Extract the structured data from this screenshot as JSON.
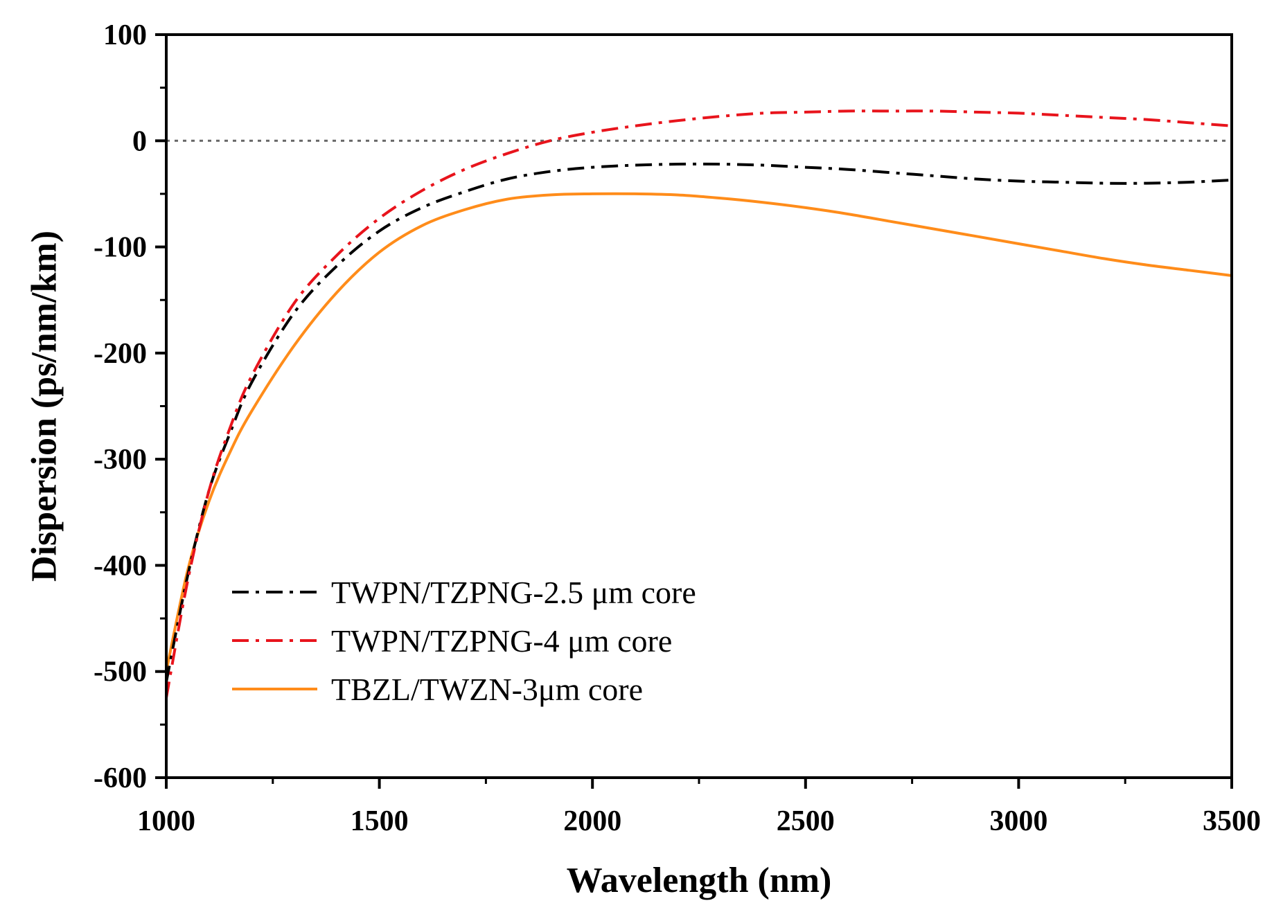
{
  "chart_data": {
    "type": "line",
    "title": "",
    "xlabel": "Wavelength (nm)",
    "ylabel": "Dispersion (ps/nm/km)",
    "xlim": [
      1000,
      3500
    ],
    "ylim": [
      -600,
      100
    ],
    "xticks": [
      1000,
      1500,
      2000,
      2500,
      3000,
      3500
    ],
    "xtick_labels": [
      "1000",
      "1500",
      "2000",
      "2500",
      "3000",
      "3500"
    ],
    "yticks": [
      100,
      0,
      -100,
      -200,
      -300,
      -400,
      -500,
      -600
    ],
    "ytick_labels": [
      "100",
      "0",
      "-100",
      "-200",
      "-300",
      "-400",
      "-500",
      "-600"
    ],
    "zero_line": {
      "y": 0,
      "style": "dotted",
      "color": "#666666"
    },
    "legend_position": "lower-left",
    "series": [
      {
        "name": "TWPN/TZPNG-2.5 μm core",
        "color": "#000000",
        "style": "dash-dot",
        "x": [
          1000,
          1050,
          1100,
          1150,
          1200,
          1300,
          1400,
          1500,
          1600,
          1700,
          1800,
          1900,
          2000,
          2100,
          2200,
          2300,
          2400,
          2500,
          2600,
          2700,
          2800,
          2900,
          3000,
          3100,
          3200,
          3300,
          3400,
          3500
        ],
        "y": [
          -510,
          -410,
          -330,
          -275,
          -228,
          -162,
          -118,
          -85,
          -63,
          -48,
          -36,
          -29,
          -25,
          -23,
          -22,
          -22,
          -23,
          -25,
          -27,
          -30,
          -33,
          -36,
          -38,
          -39,
          -40,
          -40,
          -39,
          -37
        ]
      },
      {
        "name": "TWPN/TZPNG-4 μm core",
        "color": "#e8141c",
        "style": "dash-dot",
        "x": [
          1000,
          1050,
          1100,
          1150,
          1200,
          1300,
          1400,
          1500,
          1600,
          1700,
          1800,
          1900,
          2000,
          2100,
          2200,
          2300,
          2400,
          2500,
          2600,
          2700,
          2800,
          2900,
          3000,
          3100,
          3200,
          3300,
          3400,
          3500
        ],
        "y": [
          -525,
          -415,
          -330,
          -270,
          -222,
          -153,
          -108,
          -73,
          -47,
          -27,
          -12,
          0,
          8,
          14,
          19,
          23,
          26,
          27,
          28,
          28,
          28,
          27,
          26,
          24,
          22,
          20,
          17,
          14
        ]
      },
      {
        "name": "TBZL/TWZN-3μm core",
        "color": "#ff8c1a",
        "style": "solid",
        "x": [
          1000,
          1050,
          1100,
          1150,
          1200,
          1300,
          1400,
          1500,
          1600,
          1700,
          1800,
          1900,
          2000,
          2100,
          2200,
          2300,
          2400,
          2500,
          2600,
          2700,
          2800,
          2900,
          3000,
          3100,
          3200,
          3300,
          3400,
          3500
        ],
        "y": [
          -500,
          -405,
          -340,
          -293,
          -255,
          -193,
          -143,
          -105,
          -80,
          -65,
          -55,
          -51,
          -50,
          -50,
          -51,
          -54,
          -58,
          -63,
          -69,
          -76,
          -83,
          -90,
          -97,
          -104,
          -111,
          -117,
          -122,
          -127
        ]
      }
    ]
  }
}
